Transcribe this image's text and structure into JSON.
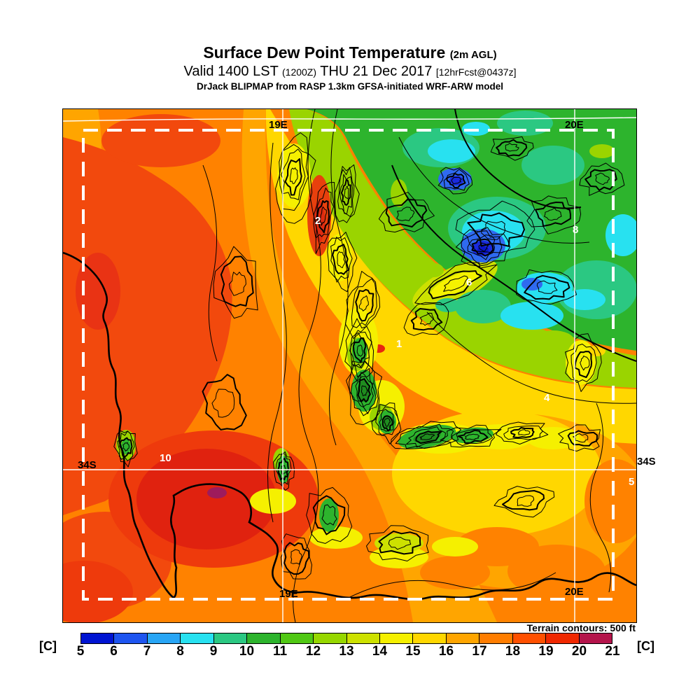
{
  "header": {
    "title": "Surface Dew Point Temperature",
    "title_unit": "(2m AGL)",
    "valid_main_1": "Valid 1400 LST",
    "valid_small_1": "(1200Z)",
    "valid_main_2": "THU 21 Dec 2017",
    "valid_small_2": "[12hrFcst@0437z]",
    "model_line": "DrJack BLIPMAP from RASP 1.3km GFSA-initiated WRF-ARW model"
  },
  "map": {
    "labels": {
      "lon19_top": "19E",
      "lon20_top": "20E",
      "lon19_bottom": "19E",
      "lon20_bottom": "20E",
      "lat34_left": "34S",
      "lat34_right": "34S"
    },
    "value_labels": {
      "v2": "2",
      "v6": "6",
      "v1": "1",
      "v8": "8",
      "v4": "4",
      "v10": "10",
      "v5": "5"
    },
    "terrain_note": "Terrain contours: 500 ft"
  },
  "legend": {
    "unit_left": "[C]",
    "unit_right": "[C]",
    "ticks": [
      "5",
      "6",
      "7",
      "8",
      "9",
      "10",
      "11",
      "12",
      "13",
      "14",
      "15",
      "16",
      "17",
      "18",
      "19",
      "20",
      "21"
    ],
    "colors": [
      "#0014D2",
      "#1E55F0",
      "#28A5F5",
      "#28E1F0",
      "#2BC882",
      "#2DB42D",
      "#50C814",
      "#96D700",
      "#CDE100",
      "#F5F000",
      "#FFD700",
      "#FFA500",
      "#FF7D00",
      "#FF5000",
      "#F02800",
      "#B4144B"
    ]
  }
}
